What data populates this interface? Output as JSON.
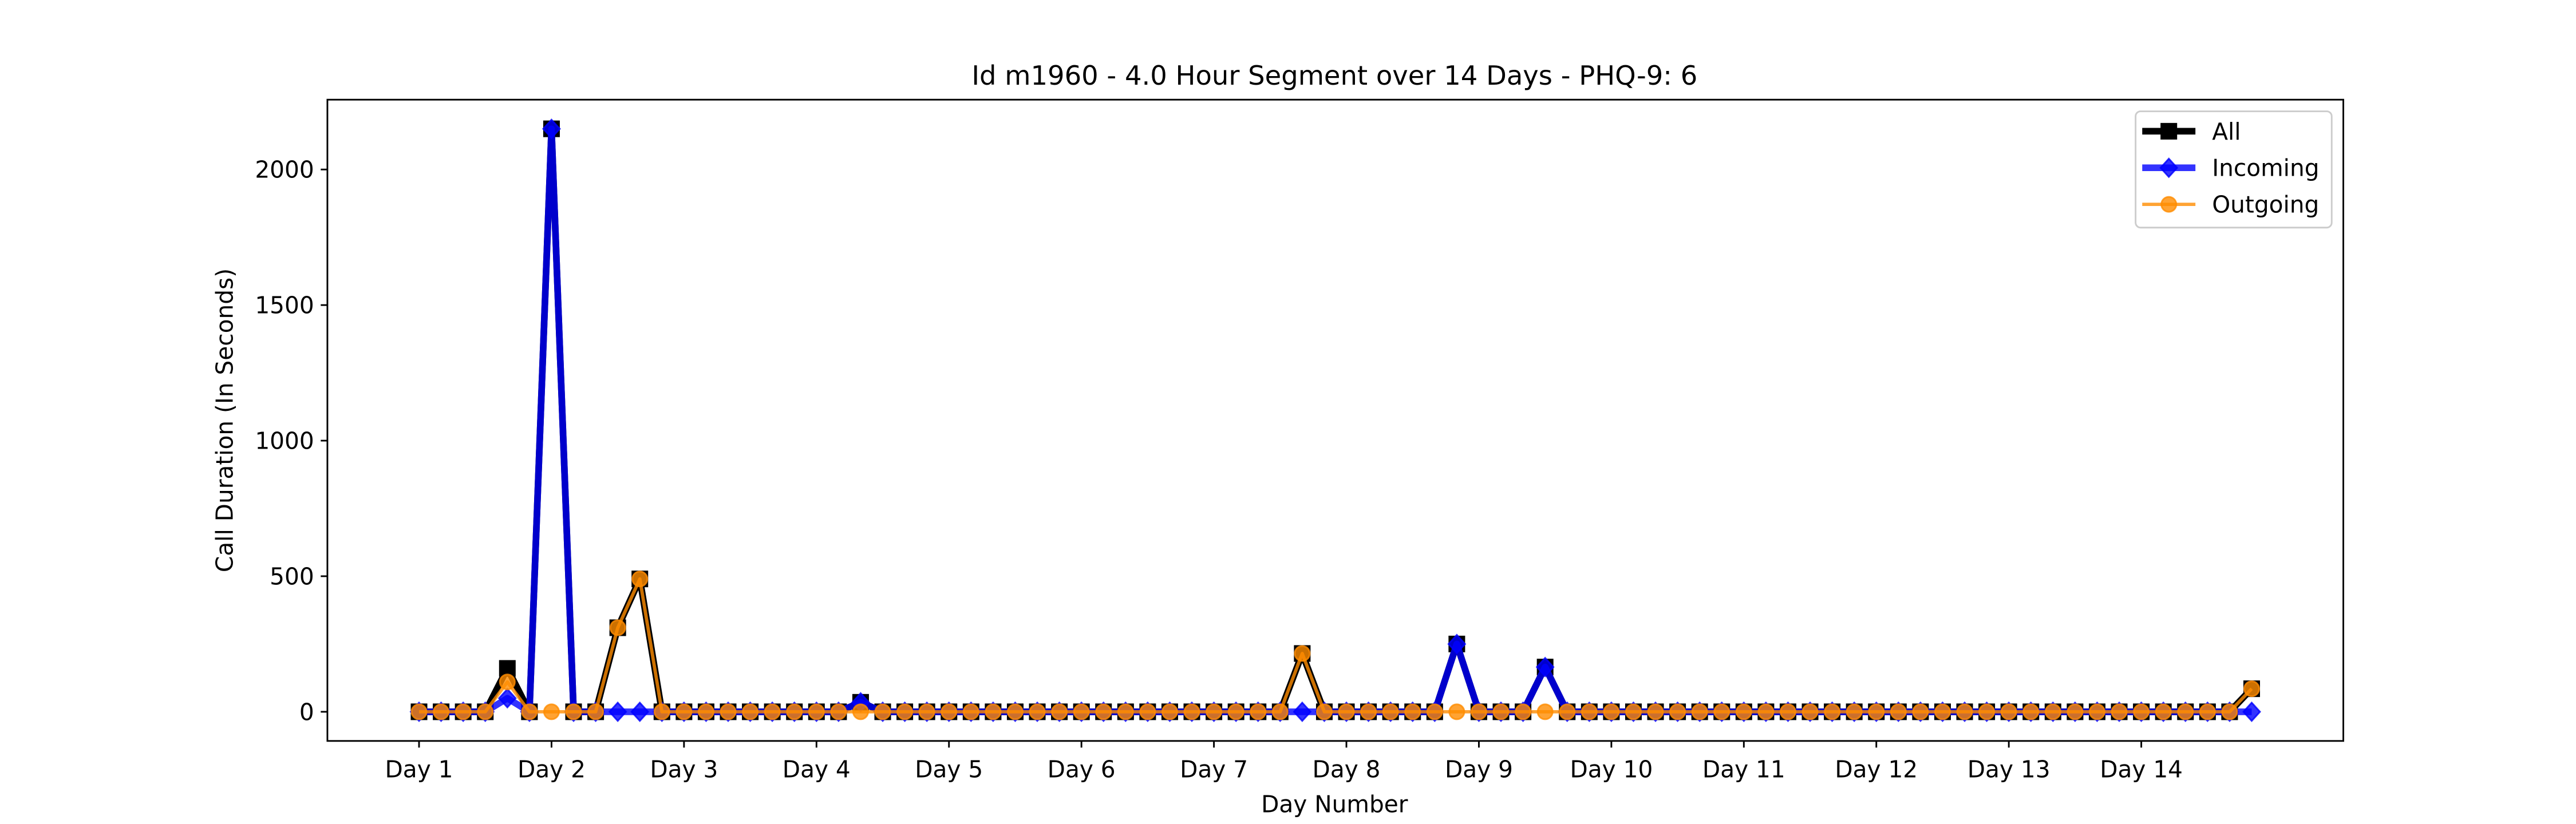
{
  "chart_data": {
    "type": "line",
    "title": "Id m1960 - 4.0 Hour Segment over 14 Days - PHQ-9: 6",
    "xlabel": "Day Number",
    "ylabel": "Call Duration (In Seconds)",
    "x": [
      0,
      1,
      2,
      3,
      4,
      5,
      6,
      7,
      8,
      9,
      10,
      11,
      12,
      13,
      14,
      15,
      16,
      17,
      18,
      19,
      20,
      21,
      22,
      23,
      24,
      25,
      26,
      27,
      28,
      29,
      30,
      31,
      32,
      33,
      34,
      35,
      36,
      37,
      38,
      39,
      40,
      41,
      42,
      43,
      44,
      45,
      46,
      47,
      48,
      49,
      50,
      51,
      52,
      53,
      54,
      55,
      56,
      57,
      58,
      59,
      60,
      61,
      62,
      63,
      64,
      65,
      66,
      67,
      68,
      69,
      70,
      71,
      72,
      73,
      74,
      75,
      76,
      77,
      78,
      79,
      80,
      81,
      82,
      83
    ],
    "series": [
      {
        "name": "All",
        "color": "#000000",
        "marker": "square",
        "values": [
          0,
          0,
          0,
          0,
          160,
          0,
          2150,
          0,
          0,
          310,
          490,
          0,
          0,
          0,
          0,
          0,
          0,
          0,
          0,
          0,
          35,
          0,
          0,
          0,
          0,
          0,
          0,
          0,
          0,
          0,
          0,
          0,
          0,
          0,
          0,
          0,
          0,
          0,
          0,
          0,
          215,
          0,
          0,
          0,
          0,
          0,
          0,
          250,
          0,
          0,
          0,
          165,
          0,
          0,
          0,
          0,
          0,
          0,
          0,
          0,
          0,
          0,
          0,
          0,
          0,
          0,
          0,
          0,
          0,
          0,
          0,
          0,
          0,
          0,
          0,
          0,
          0,
          0,
          0,
          0,
          0,
          0,
          0,
          85
        ]
      },
      {
        "name": "Incoming",
        "color": "#0000ff",
        "marker": "diamond",
        "values": [
          0,
          0,
          0,
          0,
          50,
          0,
          2150,
          0,
          0,
          0,
          0,
          0,
          0,
          0,
          0,
          0,
          0,
          0,
          0,
          0,
          35,
          0,
          0,
          0,
          0,
          0,
          0,
          0,
          0,
          0,
          0,
          0,
          0,
          0,
          0,
          0,
          0,
          0,
          0,
          0,
          0,
          0,
          0,
          0,
          0,
          0,
          0,
          250,
          0,
          0,
          0,
          165,
          0,
          0,
          0,
          0,
          0,
          0,
          0,
          0,
          0,
          0,
          0,
          0,
          0,
          0,
          0,
          0,
          0,
          0,
          0,
          0,
          0,
          0,
          0,
          0,
          0,
          0,
          0,
          0,
          0,
          0,
          0,
          0
        ]
      },
      {
        "name": "Outgoing",
        "color": "#ff8c00",
        "marker": "circle",
        "values": [
          0,
          0,
          0,
          0,
          110,
          0,
          0,
          0,
          0,
          310,
          490,
          0,
          0,
          0,
          0,
          0,
          0,
          0,
          0,
          0,
          0,
          0,
          0,
          0,
          0,
          0,
          0,
          0,
          0,
          0,
          0,
          0,
          0,
          0,
          0,
          0,
          0,
          0,
          0,
          0,
          215,
          0,
          0,
          0,
          0,
          0,
          0,
          0,
          0,
          0,
          0,
          0,
          0,
          0,
          0,
          0,
          0,
          0,
          0,
          0,
          0,
          0,
          0,
          0,
          0,
          0,
          0,
          0,
          0,
          0,
          0,
          0,
          0,
          0,
          0,
          0,
          0,
          0,
          0,
          0,
          0,
          0,
          0,
          85
        ]
      }
    ],
    "xlim": [
      -4.15,
      87.15
    ],
    "xticks": [
      {
        "value": 0,
        "label": "Day 1"
      },
      {
        "value": 6,
        "label": "Day 2"
      },
      {
        "value": 12,
        "label": "Day 3"
      },
      {
        "value": 18,
        "label": "Day 4"
      },
      {
        "value": 24,
        "label": "Day 5"
      },
      {
        "value": 30,
        "label": "Day 6"
      },
      {
        "value": 36,
        "label": "Day 7"
      },
      {
        "value": 42,
        "label": "Day 8"
      },
      {
        "value": 48,
        "label": "Day 9"
      },
      {
        "value": 54,
        "label": "Day 10"
      },
      {
        "value": 60,
        "label": "Day 11"
      },
      {
        "value": 66,
        "label": "Day 12"
      },
      {
        "value": 72,
        "label": "Day 13"
      },
      {
        "value": 78,
        "label": "Day 14"
      }
    ],
    "ylim": [
      -107.5,
      2257.5
    ],
    "yticks": [
      0,
      500,
      1000,
      1500,
      2000
    ],
    "grid": false,
    "legend": "upper right"
  }
}
